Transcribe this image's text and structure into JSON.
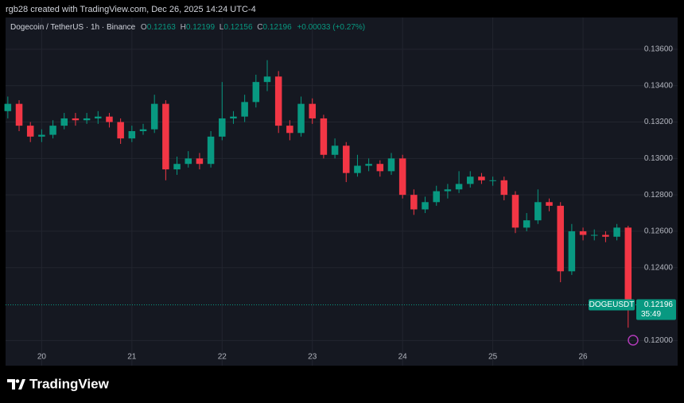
{
  "header": "rgb28 created with TradingView.com, Dec 26, 2025 14:24 UTC-4",
  "brand": "TradingView",
  "chart_data": {
    "type": "candlestick",
    "legend": {
      "symbol": "Dogecoin / TetherUS · 1h · Binance",
      "open_label": "O",
      "open": 0.12163,
      "high_label": "H",
      "high": 0.12199,
      "low_label": "L",
      "low": 0.12156,
      "close_label": "C",
      "close": 0.12196,
      "change": "+0.00033 (+0.27%)"
    },
    "symbol_tag": "DOGEUSDT",
    "last_price": 0.12196,
    "countdown": "35:49",
    "up_color": "#089981",
    "down_color": "#f23645",
    "grid": true,
    "x": [
      19.625,
      19.75,
      19.875,
      20,
      20.125,
      20.25,
      20.375,
      20.5,
      20.625,
      20.75,
      20.875,
      21,
      21.125,
      21.25,
      21.375,
      21.5,
      21.625,
      21.75,
      21.875,
      22,
      22.125,
      22.25,
      22.375,
      22.5,
      22.625,
      22.75,
      22.875,
      23,
      23.125,
      23.25,
      23.375,
      23.5,
      23.625,
      23.75,
      23.875,
      24,
      24.125,
      24.25,
      24.375,
      24.5,
      24.625,
      24.75,
      24.875,
      25,
      25.125,
      25.25,
      25.375,
      25.5,
      25.625,
      25.75,
      25.875,
      26,
      26.125,
      26.25,
      26.375,
      26.5
    ],
    "open": [
      0.1326,
      0.133,
      0.1318,
      0.1312,
      0.1313,
      0.1318,
      0.1322,
      0.1321,
      0.1322,
      0.1323,
      0.132,
      0.1311,
      0.1315,
      0.1316,
      0.133,
      0.1294,
      0.1297,
      0.13,
      0.1297,
      0.1312,
      0.1322,
      0.1323,
      0.1331,
      0.1342,
      0.1345,
      0.1318,
      0.1314,
      0.133,
      0.1322,
      0.1302,
      0.1307,
      0.1292,
      0.1296,
      0.1297,
      0.1293,
      0.13,
      0.128,
      0.1272,
      0.1276,
      0.1282,
      0.1283,
      0.1286,
      0.129,
      0.1288,
      0.1288,
      0.128,
      0.1262,
      0.1266,
      0.1276,
      0.1274,
      0.1238,
      0.126,
      0.1258,
      0.1258,
      0.1257,
      0.1262
    ],
    "high": [
      0.1334,
      0.1332,
      0.132,
      0.1316,
      0.1321,
      0.1325,
      0.1325,
      0.1325,
      0.1326,
      0.1325,
      0.1322,
      0.1318,
      0.1319,
      0.1335,
      0.1332,
      0.1301,
      0.1304,
      0.1303,
      0.1315,
      0.1342,
      0.1326,
      0.1335,
      0.1346,
      0.1354,
      0.1348,
      0.1321,
      0.1334,
      0.1333,
      0.1324,
      0.1311,
      0.1309,
      0.1302,
      0.13,
      0.1299,
      0.1303,
      0.1302,
      0.1283,
      0.1279,
      0.1285,
      0.1286,
      0.1293,
      0.1293,
      0.1292,
      0.129,
      0.129,
      0.1282,
      0.127,
      0.1283,
      0.1278,
      0.1276,
      0.1264,
      0.1262,
      0.1261,
      0.126,
      0.1264,
      0.1263
    ],
    "low": [
      0.1322,
      0.1315,
      0.1309,
      0.1309,
      0.1311,
      0.1316,
      0.1318,
      0.1319,
      0.1319,
      0.1317,
      0.1308,
      0.1309,
      0.1313,
      0.1314,
      0.1288,
      0.1291,
      0.1295,
      0.1294,
      0.1295,
      0.131,
      0.1319,
      0.132,
      0.1328,
      0.1337,
      0.1314,
      0.131,
      0.1312,
      0.1319,
      0.13,
      0.13,
      0.1287,
      0.129,
      0.1293,
      0.129,
      0.1291,
      0.1278,
      0.1269,
      0.127,
      0.1274,
      0.1278,
      0.1281,
      0.1284,
      0.1286,
      0.1285,
      0.1277,
      0.1259,
      0.126,
      0.1264,
      0.1271,
      0.1232,
      0.1236,
      0.1255,
      0.1255,
      0.1254,
      0.1255,
      0.1207
    ],
    "close": [
      0.133,
      0.1318,
      0.1312,
      0.1313,
      0.1318,
      0.1322,
      0.1321,
      0.1322,
      0.1323,
      0.132,
      0.1311,
      0.1315,
      0.1316,
      0.133,
      0.1294,
      0.1297,
      0.13,
      0.1297,
      0.1312,
      0.1322,
      0.1323,
      0.1331,
      0.1342,
      0.1345,
      0.1318,
      0.1314,
      0.133,
      0.1322,
      0.1302,
      0.1307,
      0.1292,
      0.1296,
      0.1297,
      0.1293,
      0.13,
      0.128,
      0.1272,
      0.1276,
      0.1282,
      0.1283,
      0.1286,
      0.129,
      0.1288,
      0.1288,
      0.128,
      0.1262,
      0.1266,
      0.1276,
      0.1274,
      0.1238,
      0.126,
      0.1258,
      0.1258,
      0.1257,
      0.1262,
      0.12196
    ],
    "xlim": [
      19.6,
      26.59
    ],
    "xticks": [
      20,
      21,
      22,
      23,
      24,
      25,
      26
    ],
    "ylim": [
      0.11949,
      0.13674
    ],
    "yticks": [
      {
        "value": 0.136,
        "label": "0.13600"
      },
      {
        "value": 0.134,
        "label": "0.13400"
      },
      {
        "value": 0.132,
        "label": "0.13200"
      },
      {
        "value": 0.13,
        "label": "0.13000"
      },
      {
        "value": 0.128,
        "label": "0.12800"
      },
      {
        "value": 0.126,
        "label": "0.12600"
      },
      {
        "value": 0.124,
        "label": "0.12400"
      },
      {
        "value": 0.12,
        "label": "0.12000"
      }
    ]
  }
}
